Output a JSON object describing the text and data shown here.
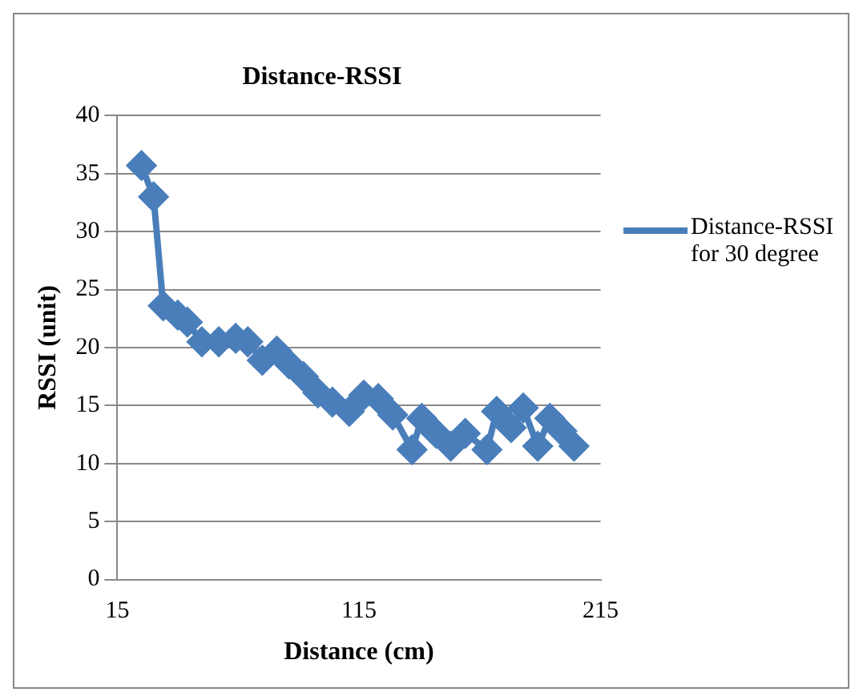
{
  "chart_data": {
    "type": "line",
    "title": "Distance-RSSI",
    "xlabel": "Distance (cm)",
    "ylabel": "RSSI (unit)",
    "x": [
      25,
      30,
      34,
      40,
      44,
      50,
      57,
      64,
      69,
      75,
      81,
      86,
      92,
      98,
      104,
      111,
      117,
      123,
      129,
      137,
      141,
      147,
      153,
      159,
      168,
      172,
      178,
      183,
      189,
      194,
      199,
      204
    ],
    "series": [
      {
        "name": "Distance-RSSI for 30 degree",
        "color": "#4a7ebb",
        "values": [
          35.7,
          33,
          23.6,
          22.8,
          22.2,
          20.5,
          20.5,
          20.8,
          20.5,
          18.9,
          19.7,
          18.6,
          17.5,
          16.1,
          15.3,
          14.5,
          15.9,
          15.6,
          14.2,
          11.2,
          13.9,
          12.6,
          11.5,
          12.6,
          11.2,
          14.5,
          13.1,
          14.8,
          11.5,
          13.9,
          12.8,
          11.5
        ]
      }
    ],
    "xlim": [
      15,
      215
    ],
    "xticks": [
      15,
      115,
      215
    ],
    "ylim": [
      0,
      40
    ],
    "yticks": [
      0,
      5,
      10,
      15,
      20,
      25,
      30,
      35,
      40
    ],
    "grid": "y",
    "legend": "right",
    "marker": "diamond",
    "line_style": "solid"
  }
}
